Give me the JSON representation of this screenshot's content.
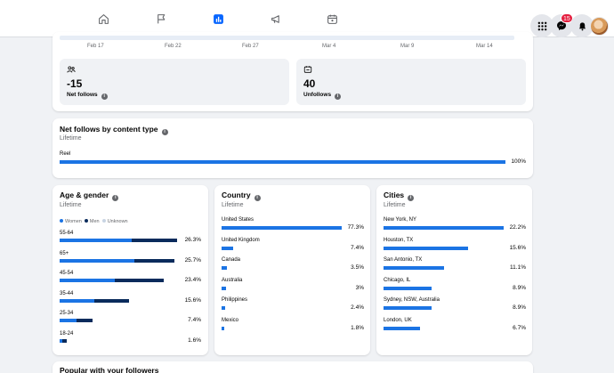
{
  "nav": {
    "tabs": [
      "home",
      "pages",
      "insights",
      "ads",
      "calendar"
    ],
    "active": "insights"
  },
  "header_right": {
    "messenger_badge": "15"
  },
  "overview": {
    "dates": [
      "Feb 17",
      "Feb 22",
      "Feb 27",
      "Mar 4",
      "Mar 9",
      "Mar 14"
    ],
    "net_follows": {
      "value": "-15",
      "label": "Net follows"
    },
    "unfollows": {
      "value": "40",
      "label": "Unfollows"
    }
  },
  "content_type": {
    "title": "Net follows by content type",
    "subtitle": "Lifetime",
    "items": [
      {
        "label": "Reel",
        "value": "100%",
        "pct": 100
      }
    ]
  },
  "age_gender": {
    "title": "Age & gender",
    "subtitle": "Lifetime",
    "legend": {
      "women": "Women",
      "men": "Men",
      "unknown": "Unknown"
    },
    "rows": [
      {
        "label": "55-64",
        "value": "26.3%",
        "women": 16.1,
        "men": 10.2
      },
      {
        "label": "65+",
        "value": "25.7%",
        "women": 16.8,
        "men": 8.9
      },
      {
        "label": "45-54",
        "value": "23.4%",
        "women": 12.3,
        "men": 11.1
      },
      {
        "label": "35-44",
        "value": "15.6%",
        "women": 7.8,
        "men": 7.8
      },
      {
        "label": "25-34",
        "value": "7.4%",
        "women": 3.7,
        "men": 3.7
      },
      {
        "label": "18-24",
        "value": "1.6%",
        "women": 0.6,
        "men": 1.0
      }
    ]
  },
  "country": {
    "title": "Country",
    "subtitle": "Lifetime",
    "rows": [
      {
        "label": "United States",
        "value": "77.3%",
        "pct": 77.3
      },
      {
        "label": "United Kingdom",
        "value": "7.4%",
        "pct": 7.4
      },
      {
        "label": "Canada",
        "value": "3.5%",
        "pct": 3.5
      },
      {
        "label": "Australia",
        "value": "3%",
        "pct": 3
      },
      {
        "label": "Philippines",
        "value": "2.4%",
        "pct": 2.4
      },
      {
        "label": "Mexico",
        "value": "1.8%",
        "pct": 1.8
      }
    ]
  },
  "cities": {
    "title": "Cities",
    "subtitle": "Lifetime",
    "rows": [
      {
        "label": "New York, NY",
        "value": "22.2%",
        "pct": 22.2
      },
      {
        "label": "Houston, TX",
        "value": "15.6%",
        "pct": 15.6
      },
      {
        "label": "San Antonio, TX",
        "value": "11.1%",
        "pct": 11.1
      },
      {
        "label": "Chicago, IL",
        "value": "8.9%",
        "pct": 8.9
      },
      {
        "label": "Sydney, NSW, Australia",
        "value": "8.9%",
        "pct": 8.9
      },
      {
        "label": "London, UK",
        "value": "6.7%",
        "pct": 6.7
      }
    ]
  },
  "popular": {
    "title": "Popular with your followers"
  },
  "colors": {
    "accent": "#0866ff",
    "women": "#1b74e4",
    "men": "#0a2b5c",
    "unknown": "#c8d4e3",
    "badge": "#e41e3f"
  }
}
